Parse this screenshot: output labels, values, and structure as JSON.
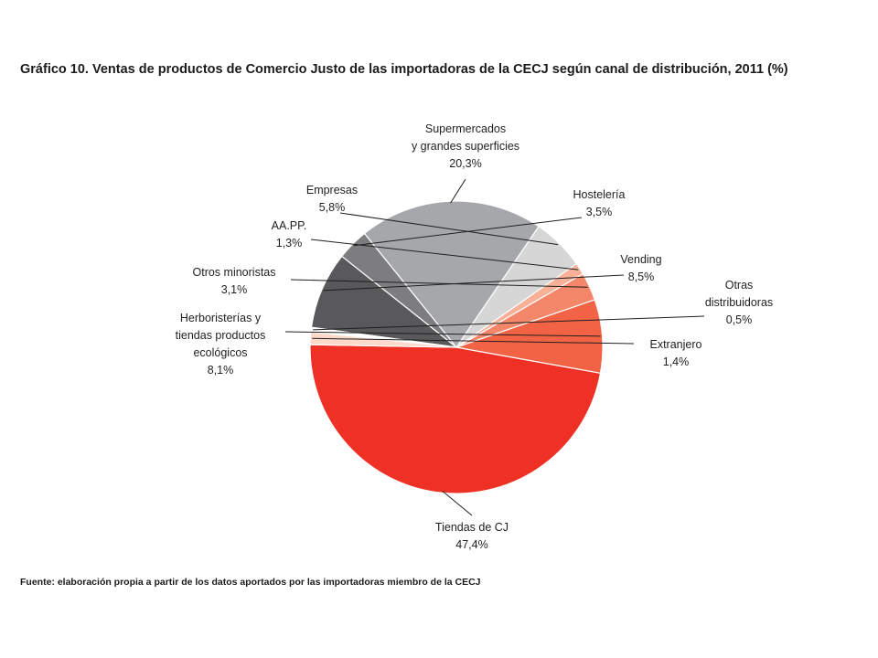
{
  "chart_data": {
    "type": "pie",
    "title": "Gráfico 10. Ventas de productos de Comercio Justo de las importadoras de la CECJ según canal de distribución, 2011 (%)",
    "source": "Fuente: elaboración propia a partir de los datos aportados por las importadoras miembro de la CECJ",
    "slices": [
      {
        "name": "Tiendas de CJ",
        "label_lines": [
          "Tiendas de CJ"
        ],
        "value_label": "47,4%",
        "value": 47.4,
        "color": "#ee3124"
      },
      {
        "name": "Herboristerías y tiendas productos ecológicos",
        "label_lines": [
          "Herboristerías y",
          "tiendas productos",
          "ecológicos"
        ],
        "value_label": "8,1%",
        "value": 8.1,
        "color": "#f26345"
      },
      {
        "name": "Otros minoristas",
        "label_lines": [
          "Otros minoristas"
        ],
        "value_label": "3,1%",
        "value": 3.1,
        "color": "#f4876a"
      },
      {
        "name": "AA.PP.",
        "label_lines": [
          "AA.PP."
        ],
        "value_label": "1,3%",
        "value": 1.3,
        "color": "#f8b197"
      },
      {
        "name": "Empresas",
        "label_lines": [
          "Empresas"
        ],
        "value_label": "5,8%",
        "value": 5.8,
        "color": "#d6d6d7"
      },
      {
        "name": "Supermercados y grandes superficies",
        "label_lines": [
          "Supermercados",
          "y grandes superficies"
        ],
        "value_label": "20,3%",
        "value": 20.3,
        "color": "#a6a7aa"
      },
      {
        "name": "Hostelería",
        "label_lines": [
          "Hostelería"
        ],
        "value_label": "3,5%",
        "value": 3.5,
        "color": "#7d7d80"
      },
      {
        "name": "Vending",
        "label_lines": [
          "Vending"
        ],
        "value_label": "8,5%",
        "value": 8.5,
        "color": "#59595b"
      },
      {
        "name": "Otras distribuidoras",
        "label_lines": [
          "Otras",
          "distribuidoras"
        ],
        "value_label": "0,5%",
        "value": 0.5,
        "color": "#ffffff"
      },
      {
        "name": "Extranjero",
        "label_lines": [
          "Extranjero"
        ],
        "value_label": "1,4%",
        "value": 1.4,
        "color": "#fcd9c8"
      }
    ]
  }
}
